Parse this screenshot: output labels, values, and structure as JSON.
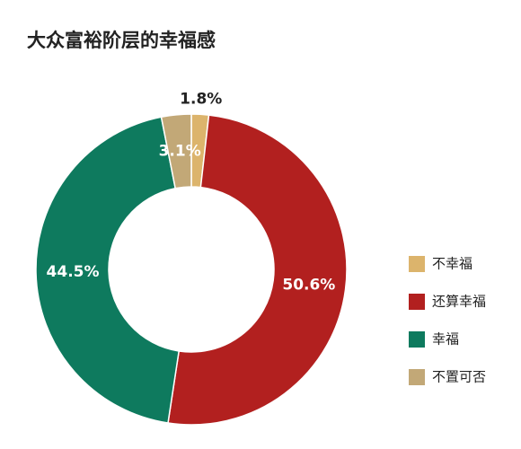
{
  "chart_data": {
    "type": "donut",
    "title": "大众富裕阶层的幸福感",
    "categories": [
      "不幸福",
      "还算幸福",
      "幸福",
      "不置可否"
    ],
    "values": [
      1.8,
      50.6,
      44.5,
      3.1
    ],
    "value_labels": [
      "1.8%",
      "50.6%",
      "44.5%",
      "3.1%"
    ],
    "colors": [
      "#dcb46c",
      "#b2201f",
      "#0e7a5e",
      "#c2a877"
    ],
    "legend": "right"
  }
}
